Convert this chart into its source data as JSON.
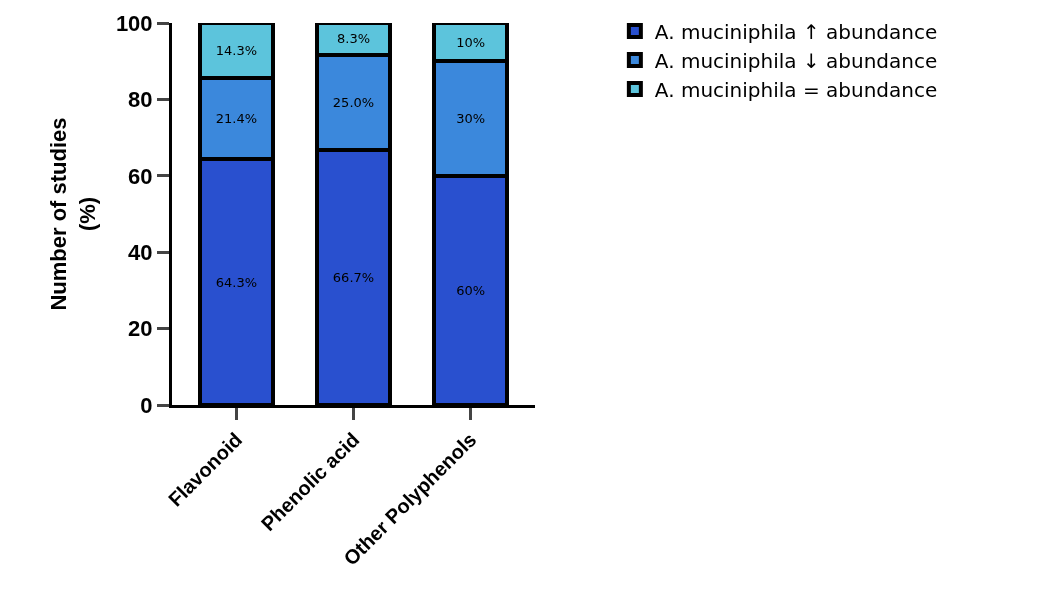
{
  "chart_data": {
    "type": "bar",
    "stacked": true,
    "ylabel": "Number of studies\n(%)",
    "categories": [
      "Flavonoid",
      "Phenolic acid",
      "Other Polyphenols"
    ],
    "series": [
      {
        "name": "A. muciniphila ↑ abundance",
        "color": "#2950cf",
        "values": [
          64.3,
          66.7,
          60
        ],
        "value_labels": [
          "64.3%",
          "66.7%",
          "60%"
        ]
      },
      {
        "name": "A. muciniphila ↓ abundance",
        "color": "#3b88dc",
        "values": [
          21.4,
          25.0,
          30
        ],
        "value_labels": [
          "21.4%",
          "25.0%",
          "30%"
        ]
      },
      {
        "name": "A. muciniphila = abundance",
        "color": "#5cc4dc",
        "values": [
          14.3,
          8.3,
          10
        ],
        "value_labels": [
          "14.3%",
          "8.3%",
          "10%"
        ]
      }
    ],
    "ylim": [
      0,
      100
    ],
    "yticks": [
      0,
      20,
      40,
      60,
      80,
      100
    ],
    "legend": "top right"
  }
}
